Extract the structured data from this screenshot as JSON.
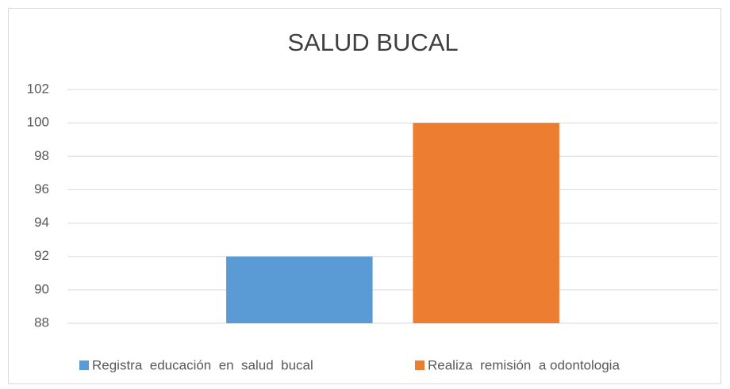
{
  "chart_data": {
    "type": "bar",
    "title": "SALUD BUCAL",
    "categories": [
      null
    ],
    "series": [
      {
        "name": "Registra  educación  en  salud  bucal",
        "color": "#5b9bd5",
        "values": [
          92
        ]
      },
      {
        "name": "Realiza  remisión  a odontologia",
        "color": "#ed7d31",
        "values": [
          100
        ]
      }
    ],
    "ylim": [
      88,
      102
    ],
    "yticks": [
      88,
      90,
      92,
      94,
      96,
      98,
      100,
      102
    ],
    "grid": true,
    "legend": "bottom"
  }
}
